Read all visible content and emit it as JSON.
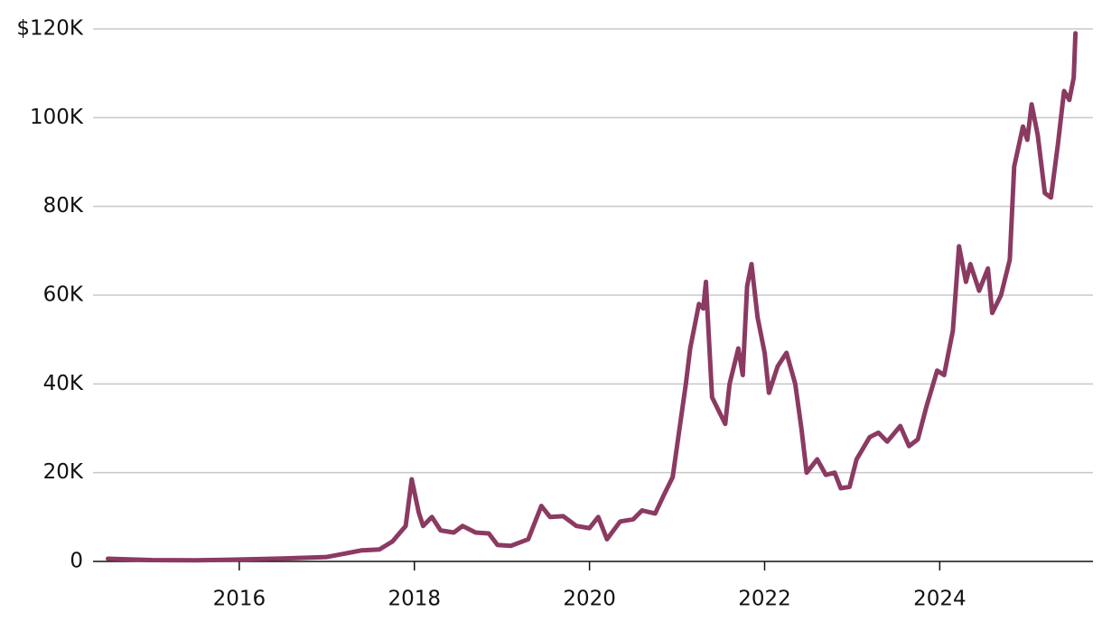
{
  "chart_data": {
    "type": "line",
    "x": [
      2014.5,
      2015.0,
      2015.5,
      2016.0,
      2016.5,
      2017.0,
      2017.4,
      2017.6,
      2017.75,
      2017.9,
      2017.97,
      2018.05,
      2018.1,
      2018.2,
      2018.3,
      2018.45,
      2018.55,
      2018.7,
      2018.85,
      2018.95,
      2019.1,
      2019.3,
      2019.45,
      2019.55,
      2019.7,
      2019.85,
      2020.0,
      2020.1,
      2020.2,
      2020.35,
      2020.5,
      2020.6,
      2020.75,
      2020.85,
      2020.95,
      2021.05,
      2021.1,
      2021.15,
      2021.25,
      2021.3,
      2021.33,
      2021.4,
      2021.5,
      2021.55,
      2021.6,
      2021.7,
      2021.75,
      2021.8,
      2021.85,
      2021.92,
      2022.0,
      2022.05,
      2022.15,
      2022.25,
      2022.35,
      2022.42,
      2022.48,
      2022.6,
      2022.7,
      2022.8,
      2022.87,
      2022.97,
      2023.05,
      2023.2,
      2023.3,
      2023.4,
      2023.55,
      2023.65,
      2023.75,
      2023.85,
      2023.97,
      2024.05,
      2024.15,
      2024.22,
      2024.3,
      2024.35,
      2024.45,
      2024.55,
      2024.6,
      2024.7,
      2024.8,
      2024.85,
      2024.95,
      2025.0,
      2025.05,
      2025.12,
      2025.2,
      2025.27,
      2025.35,
      2025.42,
      2025.48,
      2025.53,
      2025.55
    ],
    "series": [
      {
        "color": "#8b3a62",
        "values": [
          600,
          300,
          250,
          430,
          650,
          1000,
          2500,
          2700,
          4500,
          8000,
          18500,
          11000,
          8000,
          10000,
          7000,
          6500,
          8000,
          6500,
          6300,
          3700,
          3500,
          5000,
          12500,
          10000,
          10200,
          8000,
          7500,
          10000,
          5000,
          9000,
          9500,
          11500,
          10800,
          15000,
          19000,
          33000,
          40000,
          48000,
          58000,
          57000,
          63000,
          37000,
          33000,
          31000,
          40000,
          48000,
          42000,
          62000,
          67000,
          55000,
          47000,
          38000,
          44000,
          47000,
          40000,
          30000,
          20000,
          23000,
          19500,
          20000,
          16500,
          16800,
          23000,
          28000,
          29000,
          27000,
          30500,
          26000,
          27500,
          35000,
          43000,
          42000,
          52000,
          71000,
          63000,
          67000,
          61000,
          66000,
          56000,
          60000,
          68000,
          89000,
          98000,
          95000,
          103000,
          96000,
          83000,
          82000,
          94000,
          106000,
          104000,
          109000,
          119000
        ]
      }
    ],
    "xlim": [
      2014.33,
      2025.75
    ],
    "xticks": [
      2016,
      2018,
      2020,
      2022,
      2024
    ],
    "ylim": [
      0,
      120000
    ],
    "yticks": [
      {
        "value": 0,
        "label": "0"
      },
      {
        "value": 20000,
        "label": "20K"
      },
      {
        "value": 40000,
        "label": "40K"
      },
      {
        "value": 60000,
        "label": "60K"
      },
      {
        "value": 80000,
        "label": "80K"
      },
      {
        "value": 100000,
        "label": "100K"
      },
      {
        "value": 120000,
        "label": "$120K"
      }
    ],
    "grid": true
  }
}
